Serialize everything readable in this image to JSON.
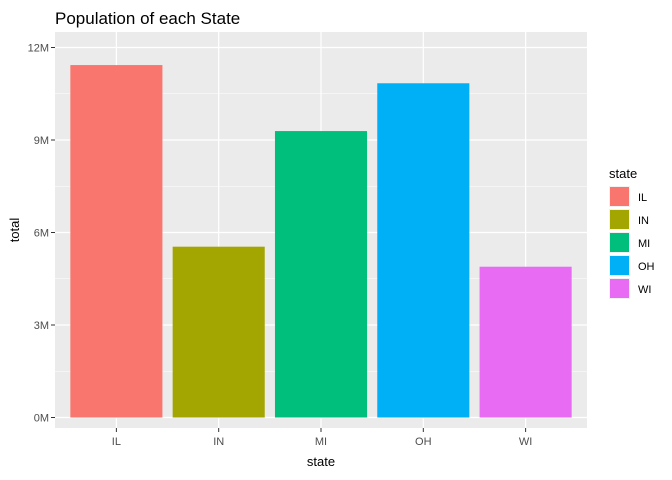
{
  "chart_data": {
    "type": "bar",
    "title": "Population of each State",
    "xlabel": "state",
    "ylabel": "total",
    "categories": [
      "IL",
      "IN",
      "MI",
      "OH",
      "WI"
    ],
    "values": [
      11430000,
      5540000,
      9290000,
      10840000,
      4890000
    ],
    "colors": [
      "#F8766D",
      "#A3A500",
      "#00BF7D",
      "#00B0F6",
      "#E76BF3"
    ],
    "ylim": [
      0,
      12000000
    ],
    "yticks": [
      0,
      3000000,
      6000000,
      9000000,
      12000000
    ],
    "ytick_labels": [
      "0M",
      "3M",
      "6M",
      "9M",
      "12M"
    ],
    "grid": true,
    "legend": {
      "title": "state",
      "placement": "right",
      "entries": [
        "IL",
        "IN",
        "MI",
        "OH",
        "WI"
      ]
    },
    "panel_color": "#EBEBEB"
  }
}
